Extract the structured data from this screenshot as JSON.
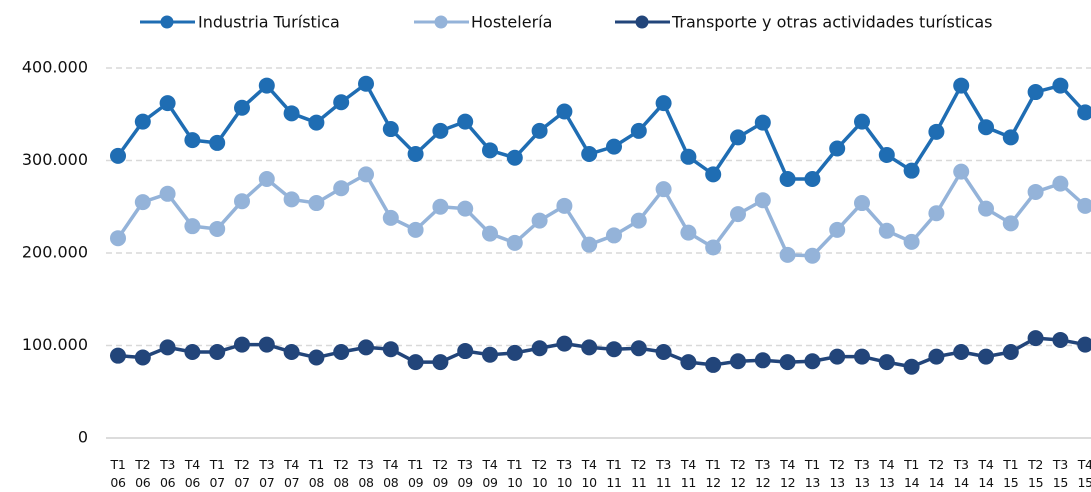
{
  "chart_data": {
    "type": "line",
    "categories": [
      "T1 06",
      "T2 06",
      "T3 06",
      "T4 06",
      "T1 07",
      "T2 07",
      "T3 07",
      "T4 07",
      "T1 08",
      "T2 08",
      "T3 08",
      "T4 08",
      "T1 09",
      "T2 09",
      "T3 09",
      "T4 09",
      "T1 10",
      "T2 10",
      "T3 10",
      "T4 10",
      "T1 11",
      "T2 11",
      "T3 11",
      "T4 11",
      "T1 12",
      "T2 12",
      "T3 12",
      "T4 12",
      "T1 13",
      "T2 13",
      "T3 13",
      "T4 13",
      "T1 14",
      "T2 14",
      "T3 14",
      "T4 14",
      "T1 15",
      "T2 15",
      "T3 15",
      "T4 15"
    ],
    "series": [
      {
        "name": "Industria Turística",
        "color": "#1f6db3",
        "values": [
          305000,
          342000,
          362000,
          322000,
          319000,
          357000,
          381000,
          351000,
          341000,
          363000,
          383000,
          334000,
          307000,
          332000,
          342000,
          311000,
          303000,
          332000,
          353000,
          307000,
          315000,
          332000,
          362000,
          304000,
          285000,
          325000,
          341000,
          280000,
          280000,
          313000,
          342000,
          306000,
          289000,
          331000,
          381000,
          336000,
          325000,
          374000,
          381000,
          352000
        ]
      },
      {
        "name": "Hostelería",
        "color": "#94b3d9",
        "values": [
          216000,
          255000,
          264000,
          229000,
          226000,
          256000,
          280000,
          258000,
          254000,
          270000,
          285000,
          238000,
          225000,
          250000,
          248000,
          221000,
          211000,
          235000,
          251000,
          209000,
          219000,
          235000,
          269000,
          222000,
          206000,
          242000,
          257000,
          198000,
          197000,
          225000,
          254000,
          224000,
          212000,
          243000,
          288000,
          248000,
          232000,
          266000,
          275000,
          251000
        ]
      },
      {
        "name": "Transporte y otras actividades turísticas",
        "color": "#22457a",
        "values": [
          89000,
          87000,
          98000,
          93000,
          93000,
          101000,
          101000,
          93000,
          87000,
          93000,
          98000,
          96000,
          82000,
          82000,
          94000,
          90000,
          92000,
          97000,
          102000,
          98000,
          96000,
          97000,
          93000,
          82000,
          79000,
          83000,
          84000,
          82000,
          83000,
          88000,
          88000,
          82000,
          77000,
          88000,
          93000,
          88000,
          93000,
          108000,
          106000,
          101000
        ]
      }
    ],
    "ylim": [
      0,
      400000
    ],
    "yticks": [
      0,
      {
        "value": 100000,
        "label": "100.000"
      },
      {
        "value": 200000,
        "label": "200.000"
      },
      {
        "value": 300000,
        "label": "300.000"
      },
      {
        "value": 400000,
        "label": "400.000"
      }
    ],
    "grid": true,
    "legend": "top"
  }
}
